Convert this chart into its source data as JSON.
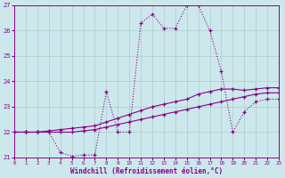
{
  "xlabel": "Windchill (Refroidissement éolien,°C)",
  "xlim": [
    0,
    23
  ],
  "ylim": [
    21,
    27
  ],
  "yticks": [
    21,
    22,
    23,
    24,
    25,
    26,
    27
  ],
  "xticks": [
    0,
    1,
    2,
    3,
    4,
    5,
    6,
    7,
    8,
    9,
    10,
    11,
    12,
    13,
    14,
    15,
    16,
    17,
    18,
    19,
    20,
    21,
    22,
    23
  ],
  "bg_color": "#cce8ec",
  "grid_color": "#aacccc",
  "line_color": "#880088",
  "line1_x": [
    0,
    1,
    2,
    3,
    4,
    5,
    6,
    7,
    8,
    9,
    10,
    11,
    12,
    13,
    14,
    15,
    16,
    17,
    18,
    19,
    20,
    21,
    22,
    23
  ],
  "line1_y": [
    22.0,
    22.0,
    22.0,
    22.0,
    21.2,
    21.05,
    21.1,
    21.1,
    23.6,
    22.0,
    22.0,
    26.3,
    26.65,
    26.1,
    26.1,
    27.0,
    27.0,
    26.0,
    24.4,
    22.0,
    22.8,
    23.2,
    23.3,
    23.3
  ],
  "line2_x": [
    0,
    1,
    2,
    3,
    4,
    5,
    6,
    7,
    8,
    9,
    10,
    11,
    12,
    13,
    14,
    15,
    16,
    17,
    18,
    19,
    20,
    21,
    22,
    23
  ],
  "line2_y": [
    22.0,
    22.0,
    22.0,
    22.05,
    22.1,
    22.15,
    22.2,
    22.25,
    22.4,
    22.55,
    22.7,
    22.85,
    23.0,
    23.1,
    23.2,
    23.3,
    23.5,
    23.6,
    23.7,
    23.7,
    23.65,
    23.7,
    23.75,
    23.75
  ],
  "line3_x": [
    0,
    1,
    2,
    3,
    4,
    5,
    6,
    7,
    8,
    9,
    10,
    11,
    12,
    13,
    14,
    15,
    16,
    17,
    18,
    19,
    20,
    21,
    22,
    23
  ],
  "line3_y": [
    22.0,
    22.0,
    22.0,
    22.0,
    22.0,
    22.0,
    22.05,
    22.1,
    22.2,
    22.3,
    22.4,
    22.5,
    22.6,
    22.7,
    22.8,
    22.9,
    23.0,
    23.1,
    23.2,
    23.3,
    23.4,
    23.5,
    23.55,
    23.55
  ]
}
